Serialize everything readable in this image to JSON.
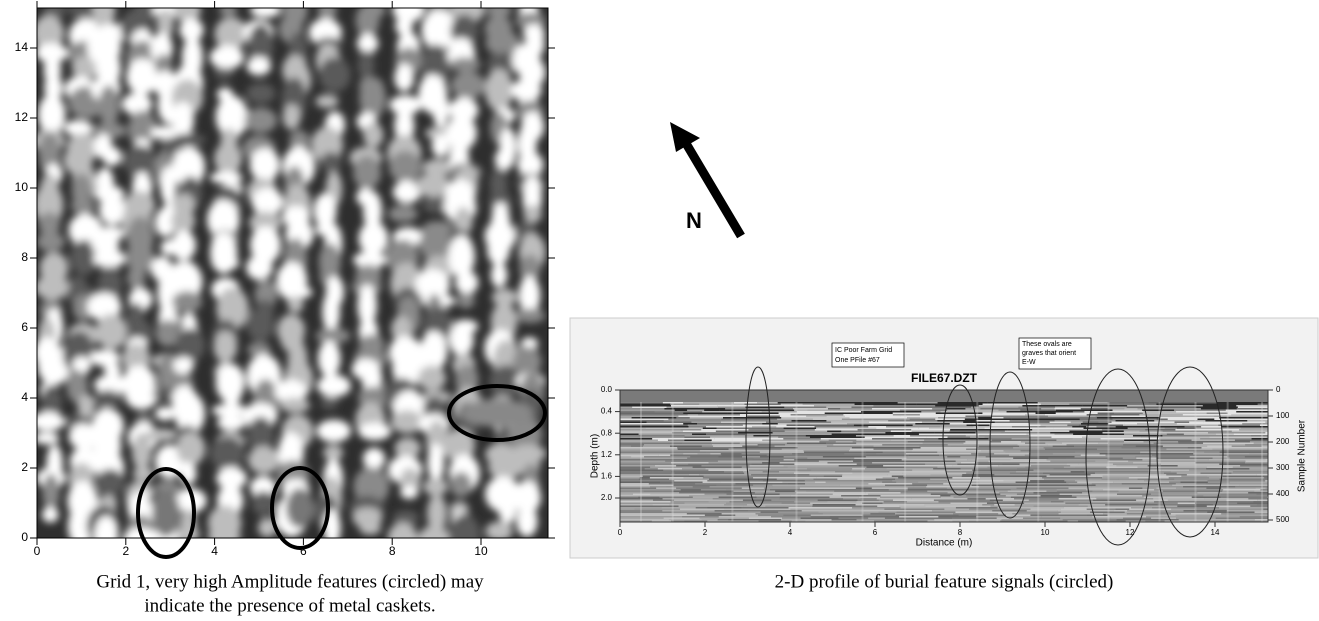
{
  "map": {
    "y_ticks": [
      "0",
      "2",
      "4",
      "6",
      "8",
      "10",
      "12",
      "14"
    ],
    "x_ticks": [
      "0",
      "2",
      "4",
      "6",
      "8",
      "10"
    ],
    "caption": [
      "Grid 1, very high Amplitude features (circled) may",
      "indicate the presence of metal caskets."
    ]
  },
  "north_label": "N",
  "profile": {
    "note": [
      "IC Poor Farm Grid",
      "One PFile #67"
    ],
    "title": "FILE67.DZT",
    "annotation": [
      "These ovals are",
      "graves that orient",
      "E-W"
    ],
    "depth_label": "Depth (m)",
    "depth_ticks": [
      "0.0",
      "0.4",
      "0.8",
      "1.2",
      "1.6",
      "2.0"
    ],
    "sample_label": "Sample Number",
    "sample_ticks": [
      "0",
      "100",
      "200",
      "300",
      "400",
      "500"
    ],
    "distance_label": "Distance (m)",
    "distance_ticks": [
      "0",
      "2",
      "4",
      "6",
      "8",
      "10",
      "12",
      "14"
    ],
    "caption": "2-D profile of burial feature signals (circled)"
  }
}
